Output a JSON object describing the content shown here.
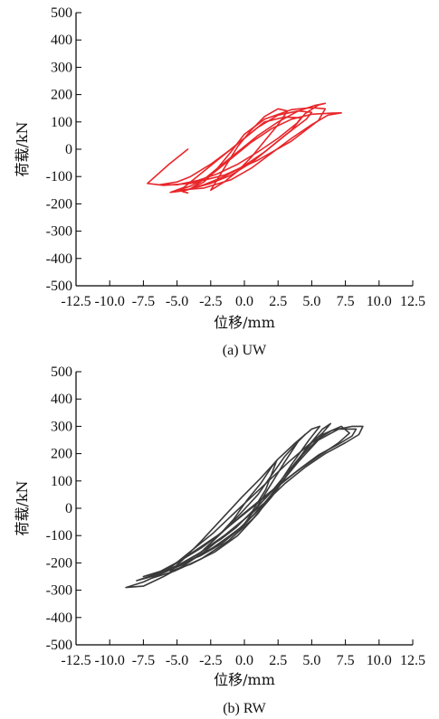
{
  "chart_data": [
    {
      "type": "line",
      "caption": "(a) UW",
      "xlabel": "位移/mm",
      "ylabel": "荷载/kN",
      "xlim": [
        -12.5,
        12.5
      ],
      "ylim": [
        -500,
        500
      ],
      "x_ticks": [
        "-12.5",
        "-10.0",
        "-7.5",
        "-5.0",
        "-2.5",
        "0.0",
        "2.5",
        "5.0",
        "7.5",
        "10.0",
        "12.5"
      ],
      "y_ticks": [
        "500",
        "400",
        "300",
        "200",
        "100",
        "0",
        "-100",
        "-200",
        "-300",
        "-400",
        "-500"
      ],
      "color": "#e8262a",
      "grid": false,
      "series": [
        {
          "x": [
            -4.2,
            -5.6,
            -7.2,
            -6.0,
            -4.0,
            -1.5,
            1.0,
            3.5,
            5.5,
            6.0,
            5.0,
            3.5,
            1.5,
            0.0,
            -1.0,
            -2.0,
            -3.0,
            -4.0,
            -4.6,
            -4.2
          ],
          "y": [
            0,
            -55,
            -125,
            -132,
            -125,
            -95,
            -40,
            30,
            105,
            148,
            152,
            145,
            110,
            55,
            -10,
            -70,
            -120,
            -145,
            -155,
            -160
          ]
        },
        {
          "x": [
            -6.3,
            -5.0,
            -3.5,
            -2.0,
            -0.5,
            1.0,
            2.5,
            3.9,
            4.2,
            3.0,
            1.5,
            0.5,
            -1.0,
            -2.5,
            -4.0,
            -5.0,
            -6.3
          ],
          "y": [
            -130,
            -130,
            -115,
            -90,
            -55,
            -10,
            40,
            95,
            115,
            118,
            100,
            60,
            0,
            -55,
            -100,
            -120,
            -130
          ]
        },
        {
          "x": [
            -5.5,
            -4.5,
            -3.0,
            -1.5,
            0.0,
            1.5,
            3.0,
            4.6,
            5.0,
            4.0,
            2.5,
            1.0,
            -0.5,
            -2.0,
            -3.5,
            -4.5,
            -5.5
          ],
          "y": [
            -158,
            -152,
            -130,
            -100,
            -60,
            -10,
            50,
            110,
            135,
            140,
            125,
            80,
            20,
            -40,
            -100,
            -140,
            -158
          ]
        },
        {
          "x": [
            -5.0,
            -3.0,
            -1.0,
            0.5,
            2.0,
            3.5,
            5.0,
            6.2,
            7.2,
            6.5,
            5.0,
            3.5,
            2.0,
            0.5,
            -1.0,
            -2.5,
            -4.0,
            -5.0
          ],
          "y": [
            -150,
            -142,
            -112,
            -70,
            -15,
            40,
            90,
            125,
            133,
            132,
            128,
            110,
            75,
            25,
            -35,
            -95,
            -135,
            -150
          ]
        },
        {
          "x": [
            -4.0,
            -2.5,
            -1.0,
            0.5,
            2.0,
            3.5,
            4.5,
            5.5,
            6.0,
            5.2,
            4.0,
            2.5,
            1.0,
            -0.5,
            -2.0,
            -3.0,
            -4.0
          ],
          "y": [
            -145,
            -125,
            -95,
            -50,
            10,
            70,
            130,
            162,
            168,
            160,
            140,
            100,
            50,
            -10,
            -70,
            -110,
            -145
          ]
        },
        {
          "x": [
            -2.5,
            -1.5,
            -0.5,
            0.5,
            1.5,
            2.5,
            3.2,
            2.5,
            1.5,
            0.5,
            -0.5,
            -1.5,
            -2.5
          ],
          "y": [
            -150,
            -120,
            -80,
            -30,
            30,
            90,
            140,
            148,
            120,
            70,
            10,
            -70,
            -150
          ]
        }
      ]
    },
    {
      "type": "line",
      "caption": "(b) RW",
      "xlabel": "位移/mm",
      "ylabel": "荷载/kN",
      "xlim": [
        -12.5,
        12.5
      ],
      "ylim": [
        -500,
        500
      ],
      "x_ticks": [
        "-12.5",
        "-10.0",
        "-7.5",
        "-5.0",
        "-2.5",
        "0.0",
        "2.5",
        "5.0",
        "7.5",
        "10.0",
        "12.5"
      ],
      "y_ticks": [
        "500",
        "400",
        "300",
        "200",
        "100",
        "0",
        "-100",
        "-200",
        "-300",
        "-400",
        "-500"
      ],
      "color": "#3a3a3a",
      "grid": false,
      "series": [
        {
          "x": [
            -8.8,
            -7.5,
            -5.5,
            -3.5,
            -1.5,
            0.5,
            2.0,
            3.5,
            5.0,
            6.5,
            8.0,
            8.8,
            8.5,
            7.5,
            6.0,
            4.5,
            3.0,
            1.5,
            0.0,
            -1.5,
            -3.0,
            -4.5,
            -6.0,
            -7.5,
            -8.8
          ],
          "y": [
            -290,
            -270,
            -225,
            -170,
            -100,
            -20,
            60,
            150,
            240,
            285,
            300,
            300,
            270,
            240,
            200,
            150,
            90,
            20,
            -40,
            -100,
            -160,
            -210,
            -250,
            -285,
            -290
          ]
        },
        {
          "x": [
            -8.0,
            -6.5,
            -4.5,
            -2.5,
            -0.5,
            1.2,
            2.5,
            4.0,
            5.5,
            7.0,
            8.3,
            8.0,
            7.0,
            5.5,
            4.0,
            2.5,
            1.0,
            -0.5,
            -2.0,
            -3.5,
            -5.0,
            -6.5,
            -8.0
          ],
          "y": [
            -265,
            -245,
            -205,
            -150,
            -80,
            0,
            80,
            170,
            250,
            290,
            290,
            265,
            235,
            195,
            140,
            80,
            20,
            -40,
            -100,
            -150,
            -200,
            -240,
            -265
          ]
        },
        {
          "x": [
            -7.5,
            -6.0,
            -4.0,
            -2.0,
            0.0,
            1.5,
            3.0,
            4.3,
            5.8,
            7.2,
            7.8,
            7.0,
            5.8,
            4.3,
            2.8,
            1.3,
            -0.2,
            -1.7,
            -3.2,
            -4.7,
            -6.2,
            -7.5
          ],
          "y": [
            -250,
            -230,
            -190,
            -135,
            -60,
            20,
            110,
            195,
            270,
            300,
            275,
            240,
            200,
            150,
            95,
            35,
            -25,
            -90,
            -145,
            -190,
            -230,
            -250
          ]
        },
        {
          "x": [
            -6.8,
            -5.2,
            -3.2,
            -1.2,
            0.6,
            2.0,
            3.3,
            4.6,
            5.8,
            6.4,
            5.8,
            4.6,
            3.3,
            2.0,
            0.6,
            -0.8,
            -2.3,
            -3.8,
            -5.3,
            -6.8
          ],
          "y": [
            -255,
            -230,
            -185,
            -120,
            -40,
            40,
            130,
            220,
            290,
            310,
            275,
            225,
            170,
            110,
            45,
            -20,
            -90,
            -150,
            -210,
            -255
          ]
        },
        {
          "x": [
            -5.5,
            -4.0,
            -2.2,
            -0.5,
            1.0,
            2.3,
            3.5,
            4.8,
            5.6,
            5.0,
            3.8,
            2.5,
            1.2,
            -0.2,
            -1.7,
            -3.2,
            -4.5,
            -5.5
          ],
          "y": [
            -230,
            -205,
            -160,
            -100,
            -20,
            70,
            160,
            250,
            300,
            290,
            240,
            180,
            110,
            40,
            -40,
            -120,
            -185,
            -230
          ]
        },
        {
          "x": [
            -4.8,
            -3.3,
            -1.7,
            -0.2,
            1.0,
            2.0,
            3.0,
            4.0,
            4.5,
            4.0,
            3.0,
            2.0,
            1.0,
            -0.3,
            -1.8,
            -3.2,
            -4.8
          ],
          "y": [
            -205,
            -175,
            -130,
            -70,
            10,
            90,
            170,
            245,
            270,
            245,
            190,
            120,
            50,
            -20,
            -95,
            -160,
            -205
          ]
        },
        {
          "x": [
            -3.0,
            -1.8,
            -0.6,
            0.6,
            1.6,
            2.4,
            2.0,
            1.2,
            0.2,
            -0.8,
            -1.9,
            -3.0
          ],
          "y": [
            -150,
            -115,
            -70,
            -10,
            70,
            175,
            150,
            90,
            30,
            -40,
            -100,
            -150
          ]
        }
      ]
    }
  ]
}
